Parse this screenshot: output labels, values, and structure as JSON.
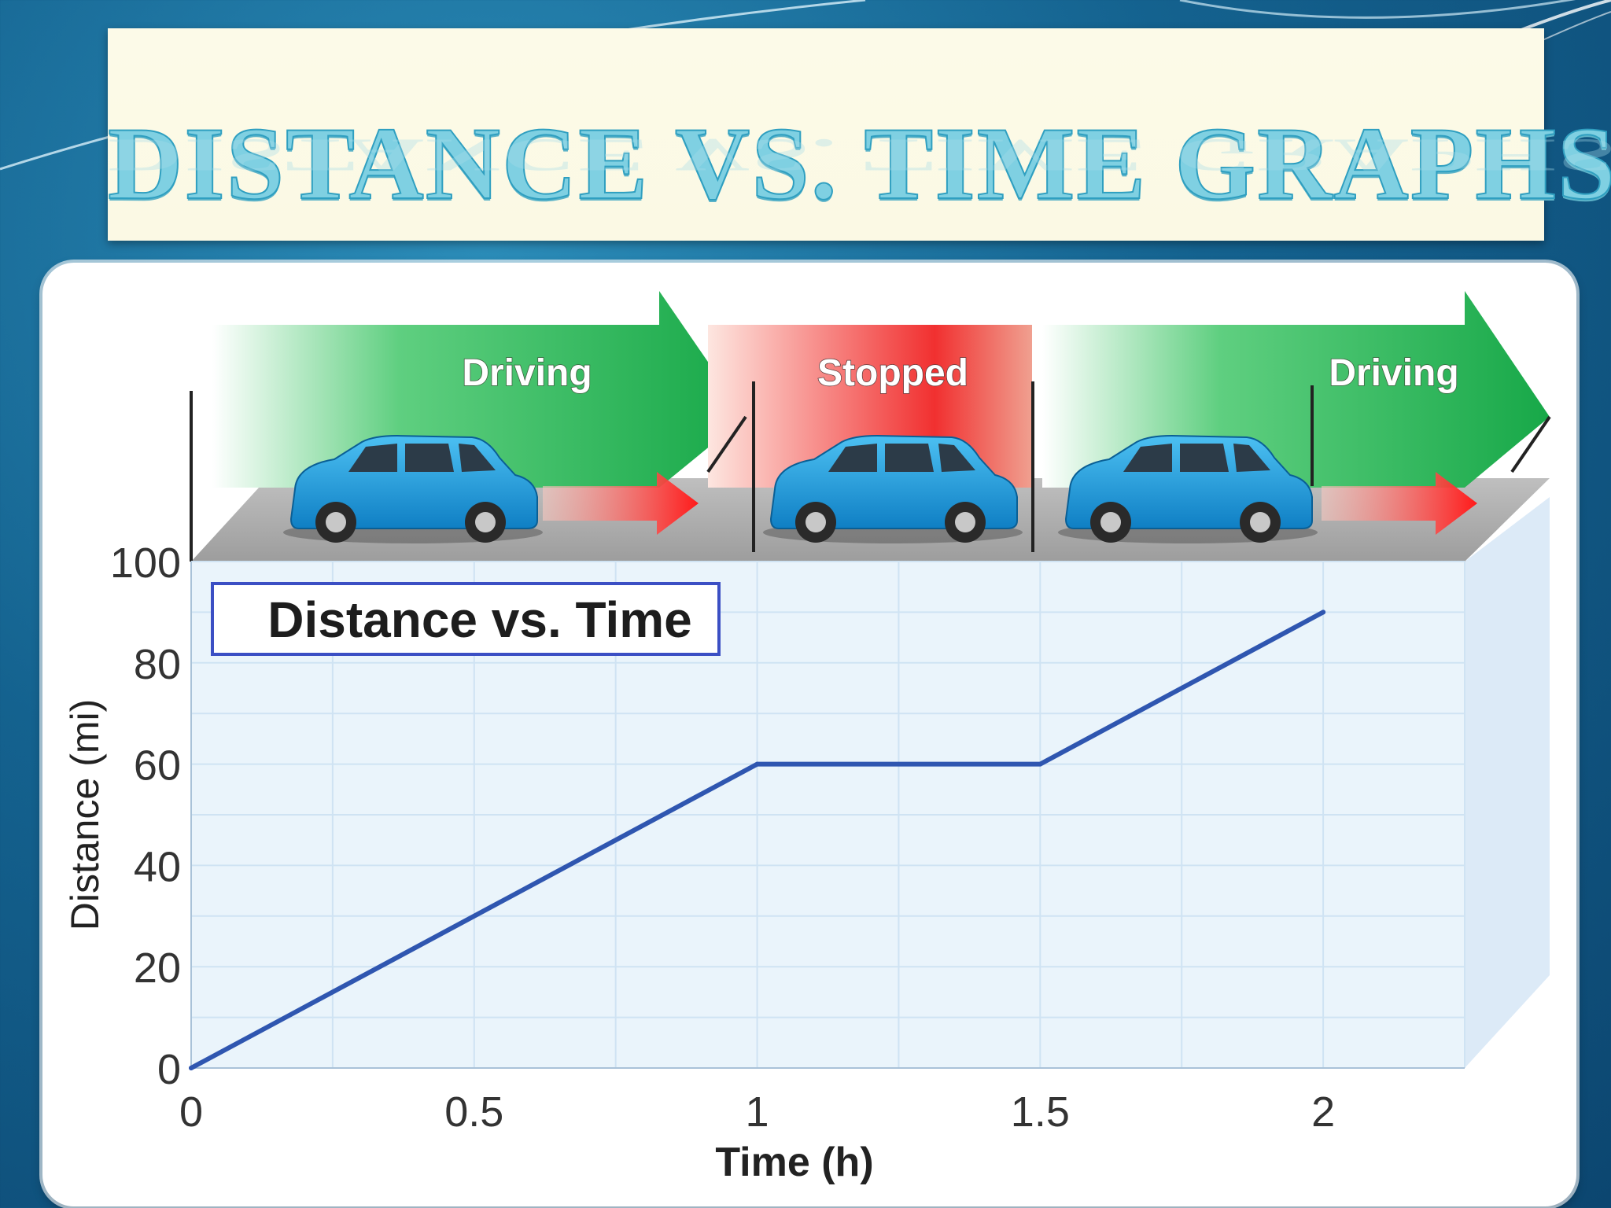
{
  "slide": {
    "title": "DISTANCE VS. TIME GRAPHS"
  },
  "scene": {
    "segments": [
      {
        "label": "Driving",
        "color": "#1eab4b"
      },
      {
        "label": "Stopped",
        "color": "#ee2a2a"
      },
      {
        "label": "Driving",
        "color": "#1eab4b"
      }
    ],
    "car_color": "#1a9fe0"
  },
  "chart_data": {
    "type": "line",
    "title": "Distance vs. Time",
    "xlabel": "Time (h)",
    "ylabel": "Distance (mi)",
    "xlim": [
      0,
      2.25
    ],
    "ylim": [
      0,
      100
    ],
    "x_ticks": [
      0,
      0.5,
      1,
      1.5,
      2
    ],
    "x_tick_labels": [
      "0",
      "0.5",
      "1",
      "1.5",
      "2"
    ],
    "y_ticks": [
      0,
      20,
      40,
      60,
      80,
      100
    ],
    "y_tick_labels": [
      "0",
      "20",
      "40",
      "60",
      "80",
      "100"
    ],
    "grid": true,
    "series": [
      {
        "color": "#2f56b0",
        "x": [
          0,
          1,
          1.5,
          2
        ],
        "y": [
          0,
          60,
          60,
          90
        ]
      }
    ]
  }
}
